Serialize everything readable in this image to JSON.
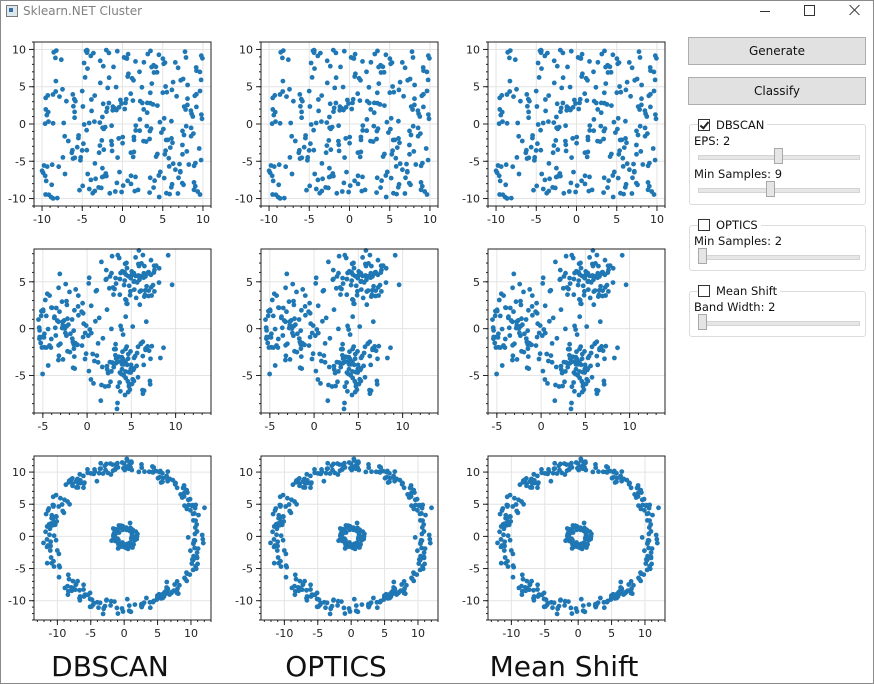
{
  "window": {
    "title": "Sklearn.NET Cluster"
  },
  "buttons": {
    "generate": "Generate",
    "classify": "Classify"
  },
  "dbscan": {
    "label": "DBSCAN",
    "checked": true,
    "eps_label": "EPS: 2",
    "eps": 2,
    "eps_range": [
      0,
      4
    ],
    "min_samples_label": "Min Samples: 9",
    "min_samples": 9,
    "min_samples_range": [
      0,
      20
    ]
  },
  "optics": {
    "label": "OPTICS",
    "checked": false,
    "min_samples_label": "Min Samples: 2",
    "min_samples": 2,
    "min_samples_range": [
      2,
      50
    ]
  },
  "meanshift": {
    "label": "Mean Shift",
    "checked": false,
    "bandwidth_label": "Band Width: 2",
    "bandwidth": 2,
    "bandwidth_range": [
      2,
      50
    ]
  },
  "algorithm_labels": [
    "DBSCAN",
    "OPTICS",
    "Mean Shift"
  ],
  "chart_data": [
    {
      "type": "scatter",
      "dataset": "uniform",
      "xlim": [
        -11,
        11
      ],
      "ylim": [
        -11,
        11
      ],
      "xticks": [
        -10,
        -5,
        0,
        5,
        10
      ],
      "yticks": [
        -10,
        -5,
        0,
        5,
        10
      ],
      "grid": true,
      "color": "#1f77b4",
      "points": 280
    },
    {
      "type": "scatter",
      "dataset": "blobs",
      "xlim": [
        -6,
        14
      ],
      "ylim": [
        -9,
        8.5
      ],
      "xticks": [
        -5,
        0,
        5,
        10
      ],
      "yticks": [
        -5,
        0,
        5
      ],
      "grid": true,
      "color": "#1f77b4",
      "points": 300,
      "centers": [
        [
          -3,
          0
        ],
        [
          5,
          5
        ],
        [
          4,
          -4
        ]
      ]
    },
    {
      "type": "scatter",
      "dataset": "circles",
      "xlim": [
        -13.5,
        13
      ],
      "ylim": [
        -13,
        12.5
      ],
      "xticks": [
        -10,
        -5,
        0,
        5,
        10
      ],
      "yticks": [
        -10,
        -5,
        0,
        5,
        10
      ],
      "grid": true,
      "color": "#1f77b4",
      "points": 400,
      "outer_radius": 11,
      "inner_radius": 1.5
    }
  ]
}
